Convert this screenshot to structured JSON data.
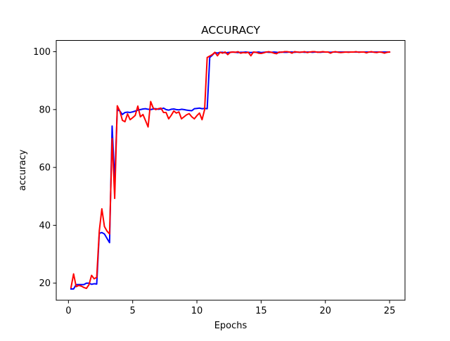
{
  "chart_data": {
    "type": "line",
    "title": "ACCURACY",
    "xlabel": "Epochs",
    "ylabel": "accuracy",
    "xlim": [
      -0.95,
      26.2
    ],
    "ylim": [
      14.1,
      103.9
    ],
    "xticks": [
      0,
      5,
      10,
      15,
      20,
      25
    ],
    "yticks": [
      20,
      40,
      60,
      80,
      100
    ],
    "x_tick_labels": [
      "0",
      "5",
      "10",
      "15",
      "20",
      "25"
    ],
    "y_tick_labels": [
      "20",
      "40",
      "60",
      "80",
      "100"
    ],
    "grid": false,
    "legend": "none",
    "series": [
      {
        "color": "#0000ff",
        "x": [
          0.2,
          0.4,
          0.6,
          0.8,
          1,
          1.2,
          1.4,
          1.6,
          1.8,
          2,
          2.2,
          2.4,
          2.6,
          2.8,
          3,
          3.2,
          3.4,
          3.6,
          3.8,
          4,
          4.2,
          4.4,
          4.6,
          4.8,
          5,
          5.2,
          5.4,
          5.6,
          5.8,
          6,
          6.2,
          6.4,
          6.6,
          6.8,
          7,
          7.2,
          7.4,
          7.6,
          7.8,
          8,
          8.2,
          8.4,
          8.6,
          8.8,
          9,
          9.2,
          9.4,
          9.6,
          9.8,
          10,
          10.2,
          10.4,
          10.6,
          10.8,
          11,
          11.2,
          11.4,
          11.6,
          11.8,
          12,
          12.2,
          12.4,
          12.6,
          12.8,
          13,
          13.2,
          13.4,
          13.6,
          13.8,
          14,
          14.2,
          14.4,
          14.6,
          14.8,
          15,
          15.2,
          15.4,
          15.6,
          15.8,
          16,
          16.2,
          16.4,
          16.6,
          16.8,
          17,
          17.2,
          17.4,
          17.6,
          17.8,
          18,
          18.2,
          18.4,
          18.6,
          18.8,
          19,
          19.2,
          19.4,
          19.6,
          19.8,
          20,
          20.2,
          20.4,
          20.6,
          20.8,
          21,
          21.2,
          21.4,
          21.6,
          21.8,
          22,
          22.2,
          22.4,
          22.6,
          22.8,
          23,
          23.2,
          23.4,
          23.6,
          23.8,
          24,
          24.2,
          24.4,
          24.6,
          24.8,
          25
        ],
        "y": [
          18,
          18,
          19.5,
          19.5,
          19.5,
          19.5,
          20,
          20,
          19.6,
          19.8,
          19.7,
          37.2,
          37.5,
          37,
          35.5,
          34,
          74.3,
          55,
          80,
          79.5,
          78.3,
          79,
          79.1,
          79,
          79.2,
          79.5,
          79.8,
          80,
          80.2,
          80.3,
          80.1,
          80,
          80.2,
          80.3,
          80.1,
          80.2,
          80.5,
          80,
          79.8,
          80.1,
          80.2,
          80,
          79.9,
          80.1,
          80,
          79.8,
          79.7,
          79.6,
          80.3,
          80.4,
          80.5,
          80.3,
          80.4,
          80.3,
          98,
          98.8,
          99.7,
          99.5,
          99.8,
          99.8,
          99.6,
          99.7,
          99.8,
          99.9,
          99.8,
          99.7,
          99.8,
          99.8,
          99.9,
          99.8,
          99.7,
          99.8,
          99.8,
          99.9,
          99.7,
          99.8,
          99.9,
          99.8,
          99.8,
          99.9,
          99.8,
          99.7,
          99.9,
          99.8,
          99.8,
          99.9,
          99.9,
          99.8,
          99.9,
          99.8,
          99.9,
          99.8,
          99.9,
          99.9,
          99.8,
          99.9,
          99.9,
          99.8,
          99.9,
          99.9,
          99.9,
          99.8,
          99.9,
          99.9,
          99.9,
          99.9,
          99.9,
          99.9,
          99.9,
          99.9,
          99.9,
          99.9,
          99.9,
          99.9,
          99.9,
          99.9,
          99.9,
          99.9,
          99.9,
          99.9,
          99.9,
          99.9,
          99.9,
          99.9,
          99.9
        ]
      },
      {
        "color": "#ff0000",
        "x": [
          0.2,
          0.4,
          0.6,
          0.8,
          1,
          1.2,
          1.4,
          1.6,
          1.8,
          2,
          2.2,
          2.4,
          2.6,
          2.8,
          3,
          3.2,
          3.4,
          3.6,
          3.8,
          4,
          4.2,
          4.4,
          4.6,
          4.8,
          5,
          5.2,
          5.4,
          5.6,
          5.8,
          6,
          6.2,
          6.4,
          6.6,
          6.8,
          7,
          7.2,
          7.4,
          7.6,
          7.8,
          8,
          8.2,
          8.4,
          8.6,
          8.8,
          9,
          9.2,
          9.4,
          9.6,
          9.8,
          10,
          10.2,
          10.4,
          10.6,
          10.8,
          11,
          11.2,
          11.4,
          11.6,
          11.8,
          12,
          12.2,
          12.4,
          12.6,
          12.8,
          13,
          13.2,
          13.4,
          13.6,
          13.8,
          14,
          14.2,
          14.4,
          14.6,
          14.8,
          15,
          15.2,
          15.4,
          15.6,
          15.8,
          16,
          16.2,
          16.4,
          16.6,
          16.8,
          17,
          17.2,
          17.4,
          17.6,
          17.8,
          18,
          18.2,
          18.4,
          18.6,
          18.8,
          19,
          19.2,
          19.4,
          19.6,
          19.8,
          20,
          20.2,
          20.4,
          20.6,
          20.8,
          21,
          21.2,
          21.4,
          21.6,
          21.8,
          22,
          22.2,
          22.4,
          22.6,
          22.8,
          23,
          23.2,
          23.4,
          23.6,
          23.8,
          24,
          24.2,
          24.4,
          24.6,
          24.8,
          25
        ],
        "y": [
          18.5,
          23.2,
          18.8,
          19.2,
          19,
          18.5,
          18.2,
          19.5,
          22.7,
          21.5,
          22,
          38,
          45.7,
          39.6,
          38,
          37,
          70,
          49.3,
          81.3,
          79.5,
          76.3,
          75.8,
          78.5,
          76.5,
          77.2,
          78,
          81.2,
          77.5,
          78.3,
          76.2,
          74,
          82.8,
          80.5,
          80,
          80.3,
          80.5,
          79,
          79,
          76.8,
          78,
          79.5,
          78.8,
          79.2,
          76.8,
          77.5,
          78.2,
          78.6,
          77.5,
          76.8,
          77.9,
          78.8,
          76.5,
          80,
          98,
          98.5,
          99,
          99.8,
          98.6,
          99.8,
          99.5,
          99.9,
          99,
          99.8,
          99.9,
          99.8,
          100,
          99.5,
          99.7,
          99.6,
          99.8,
          98.6,
          99.9,
          99.8,
          99.5,
          99.4,
          99.6,
          99.9,
          100,
          99.8,
          99.5,
          99.3,
          99.9,
          99.8,
          100,
          100,
          99.9,
          99.5,
          100,
          99.9,
          99.8,
          99.9,
          100,
          99.7,
          99.9,
          100,
          100,
          99.8,
          99.9,
          100,
          99.9,
          99.9,
          99.5,
          99.9,
          100,
          99.8,
          99.7,
          99.8,
          99.9,
          99.8,
          99.9,
          99.9,
          100,
          99.8,
          99.9,
          99.9,
          99.6,
          99.9,
          100,
          99.8,
          99.7,
          99.9,
          99.8,
          99.5,
          99.8,
          99.9
        ]
      }
    ]
  }
}
